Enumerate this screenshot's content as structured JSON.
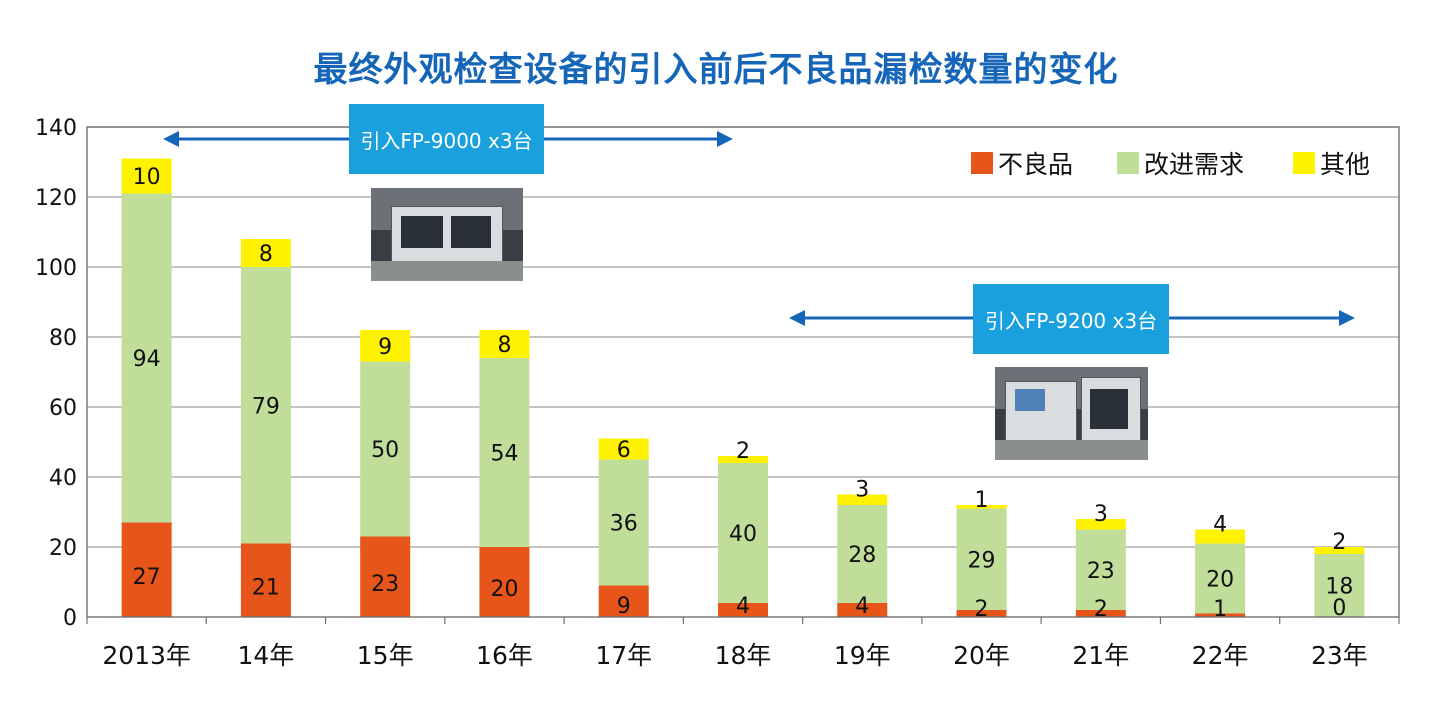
{
  "title": "最终外观检查设备的引入前后不良品漏检数量的变化",
  "chart_data": {
    "type": "bar",
    "stacked": true,
    "categories": [
      "2013年",
      "14年",
      "15年",
      "16年",
      "17年",
      "18年",
      "19年",
      "20年",
      "21年",
      "22年",
      "23年"
    ],
    "series": [
      {
        "name": "不良品",
        "color": "#e8551a",
        "values": [
          27,
          21,
          23,
          20,
          9,
          4,
          4,
          2,
          2,
          1,
          0
        ]
      },
      {
        "name": "改进需求",
        "color": "#c0dd9a",
        "values": [
          94,
          79,
          50,
          54,
          36,
          40,
          28,
          29,
          23,
          20,
          18
        ]
      },
      {
        "name": "其他",
        "color": "#fff200",
        "values": [
          10,
          8,
          9,
          8,
          6,
          2,
          3,
          1,
          3,
          4,
          2
        ]
      }
    ],
    "y_ticks": [
      "0",
      "20",
      "40",
      "60",
      "80",
      "100",
      "120",
      "140"
    ],
    "ylim": [
      0,
      140
    ],
    "grid": true,
    "legend_position": "top-right"
  },
  "annotations": [
    {
      "label": "引入FP-9000 x3台",
      "from": "2013年",
      "to": "18年"
    },
    {
      "label": "引入FP-9200 x3台",
      "from": "18年",
      "to": "23年"
    }
  ],
  "colors": {
    "title": "#1565b8",
    "annotation_box": "#1aa0dc",
    "arrow": "#1565b8",
    "grid": "#a0a0a0"
  }
}
